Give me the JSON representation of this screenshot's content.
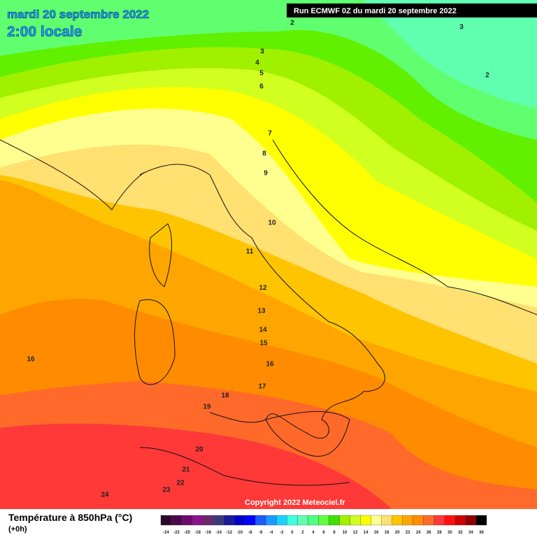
{
  "header": {
    "title": "mardi 20 septembre 2022",
    "time": "2:00 locale",
    "run": "Run ECMWF 0Z du mardi 20 septembre 2022"
  },
  "map": {
    "contour_labels": [
      2,
      3,
      3,
      4,
      5,
      6,
      2,
      7,
      8,
      9,
      10,
      11,
      12,
      13,
      14,
      15,
      16,
      16,
      17,
      18,
      19,
      20,
      21,
      22,
      23,
      24
    ],
    "copyright": "Copyright 2022 Meteociel.fr"
  },
  "legend": {
    "title": "Température à 850hPa (°C)",
    "subtitle": "(+0h)",
    "ticks": [
      -24,
      -22,
      -20,
      -18,
      -16,
      -14,
      -12,
      -10,
      -8,
      -6,
      -4,
      -2,
      0,
      2,
      4,
      6,
      8,
      10,
      12,
      14,
      16,
      18,
      20,
      22,
      24,
      26,
      28,
      30,
      32,
      34,
      36
    ],
    "colors": [
      "#2b062b",
      "#4a0a4a",
      "#6e0a6e",
      "#8c128c",
      "#6a2a6a",
      "#3a3a7a",
      "#1a1a9a",
      "#0000cc",
      "#0000ff",
      "#1a5aff",
      "#1a9aff",
      "#1ad0ff",
      "#40ffe0",
      "#60ffb0",
      "#50ff80",
      "#60ff40",
      "#40e000",
      "#a0f000",
      "#d0ff20",
      "#ffff00",
      "#ffff90",
      "#ffe070",
      "#ffc400",
      "#ffa500",
      "#ff8c00",
      "#ff6a2a",
      "#ff3838",
      "#ff1010",
      "#d00000",
      "#900000",
      "#000000"
    ]
  }
}
